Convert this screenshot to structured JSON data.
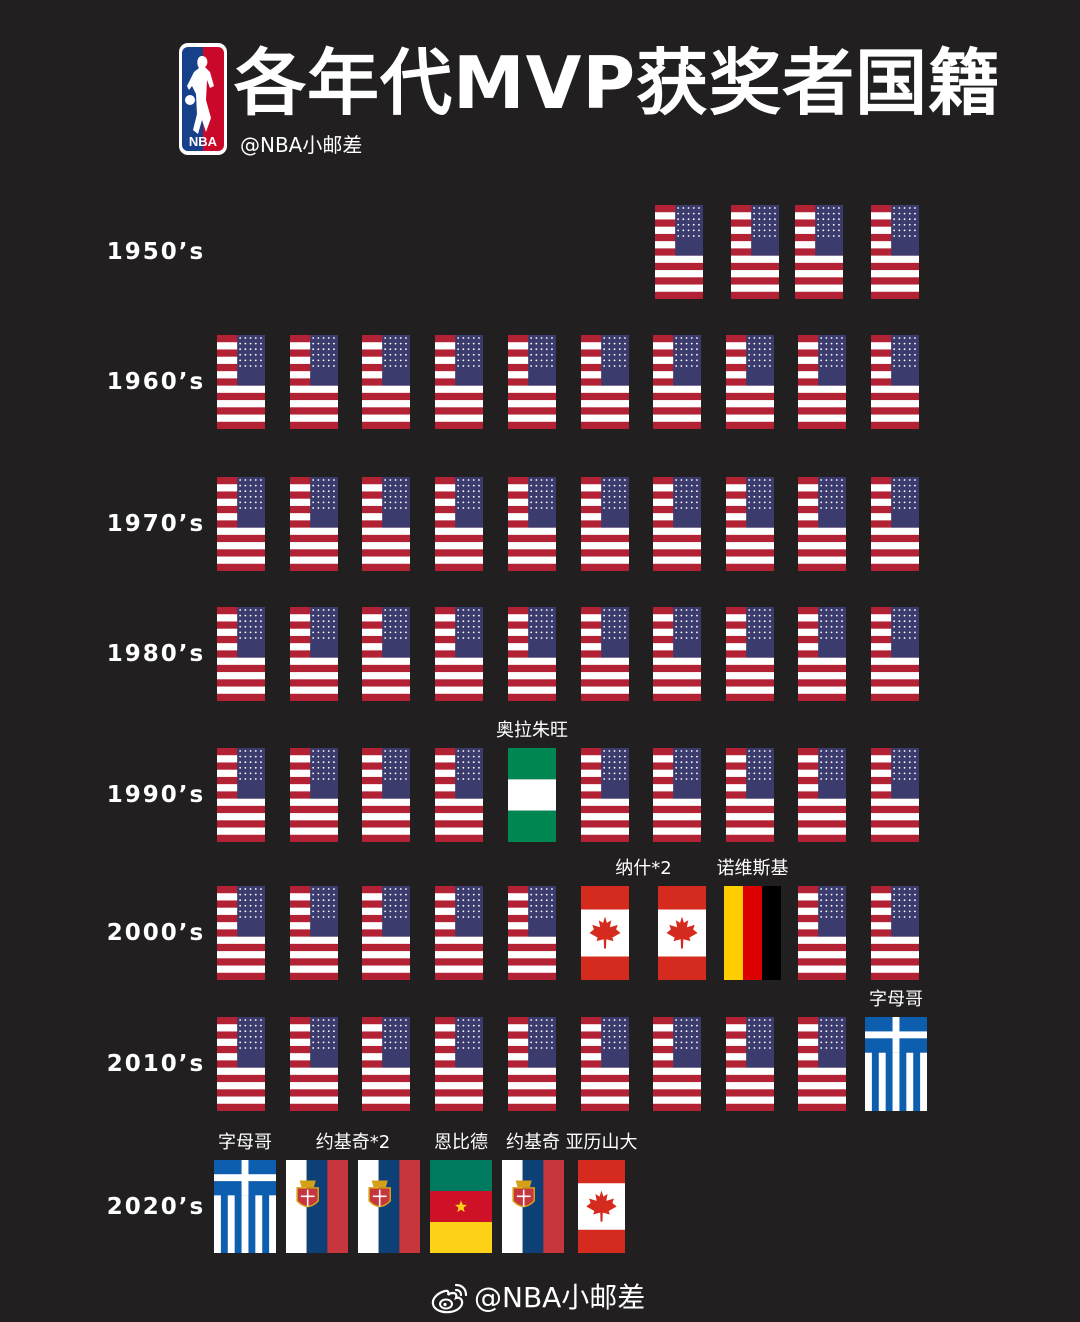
{
  "header": {
    "title": "各年代MVP获奖者国籍",
    "handle": "@NBA小邮差",
    "logo": {
      "icon": "nba-logo-icon",
      "text": "NBA",
      "colors": {
        "blue": "#17408b",
        "red": "#c9082a"
      }
    }
  },
  "colors": {
    "background": "#221f20",
    "usa": {
      "red": "#b22234",
      "white": "#ffffff",
      "blue": "#3c3b6e"
    },
    "canada": {
      "red": "#d52b1e",
      "white": "#ffffff"
    },
    "germany": {
      "black": "#000000",
      "red": "#dd0000",
      "gold": "#ffce00"
    },
    "nigeria": {
      "green": "#008751",
      "white": "#ffffff"
    },
    "greece": {
      "blue": "#0d5eaf",
      "white": "#ffffff"
    },
    "serbia": {
      "red": "#c6363c",
      "blue": "#0c4076",
      "white": "#ffffff"
    },
    "cameroon": {
      "green": "#007a5e",
      "red": "#ce1126",
      "yellow": "#fcd116"
    }
  },
  "decades": [
    {
      "label": "1950’s",
      "flags": [
        "usa",
        "usa",
        "usa",
        "usa"
      ]
    },
    {
      "label": "1960’s",
      "flags": [
        "usa",
        "usa",
        "usa",
        "usa",
        "usa",
        "usa",
        "usa",
        "usa",
        "usa",
        "usa"
      ]
    },
    {
      "label": "1970’s",
      "flags": [
        "usa",
        "usa",
        "usa",
        "usa",
        "usa",
        "usa",
        "usa",
        "usa",
        "usa",
        "usa"
      ]
    },
    {
      "label": "1980’s",
      "flags": [
        "usa",
        "usa",
        "usa",
        "usa",
        "usa",
        "usa",
        "usa",
        "usa",
        "usa",
        "usa"
      ]
    },
    {
      "label": "1990’s",
      "flags": [
        "usa",
        "usa",
        "usa",
        "usa",
        "nigeria",
        "usa",
        "usa",
        "usa",
        "usa",
        "usa"
      ]
    },
    {
      "label": "2000’s",
      "flags": [
        "usa",
        "usa",
        "usa",
        "usa",
        "usa",
        "canada",
        "canada",
        "germany",
        "usa",
        "usa"
      ]
    },
    {
      "label": "2010’s",
      "flags": [
        "usa",
        "usa",
        "usa",
        "usa",
        "usa",
        "usa",
        "usa",
        "usa",
        "usa",
        "greece"
      ]
    },
    {
      "label": "2020’s",
      "flags": [
        "greece",
        "serbia",
        "serbia",
        "cameroon",
        "serbia",
        "canada"
      ]
    }
  ],
  "player_labels": [
    {
      "decade": 4,
      "flags": [
        4
      ],
      "text": "奥拉朱旺"
    },
    {
      "decade": 5,
      "flags": [
        5,
        6
      ],
      "text": "纳什*2"
    },
    {
      "decade": 5,
      "flags": [
        7
      ],
      "text": "诺维斯基"
    },
    {
      "decade": 6,
      "flags": [
        9
      ],
      "text": "字母哥"
    },
    {
      "decade": 7,
      "flags": [
        0
      ],
      "text": "字母哥"
    },
    {
      "decade": 7,
      "flags": [
        1,
        2
      ],
      "text": "约基奇*2"
    },
    {
      "decade": 7,
      "flags": [
        3
      ],
      "text": "恩比德"
    },
    {
      "decade": 7,
      "flags": [
        4
      ],
      "text": "约基奇"
    },
    {
      "decade": 7,
      "flags": [
        5
      ],
      "text": "亚历山大"
    }
  ],
  "watermark": {
    "icon": "weibo-icon",
    "text": "@NBA小邮差"
  }
}
